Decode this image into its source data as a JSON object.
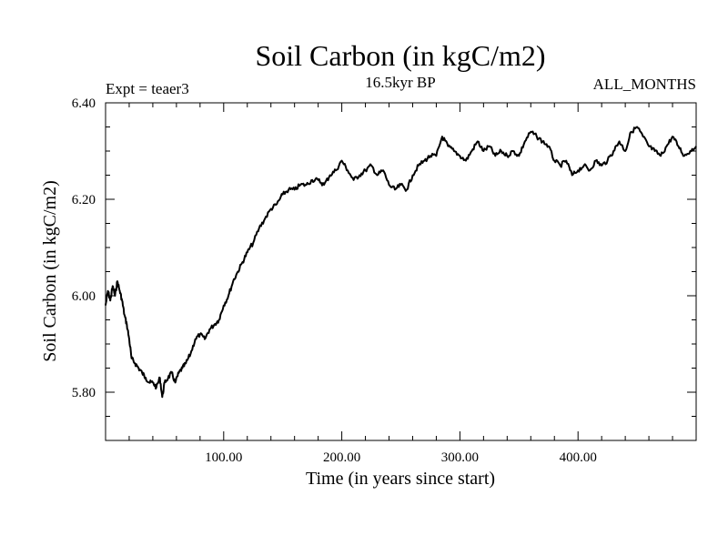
{
  "chart_data": {
    "type": "line",
    "title": "Soil Carbon (in kgC/m2)",
    "subtitle": "16.5kyr BP",
    "left_label": "Expt = teaer3",
    "right_label": "ALL_MONTHS",
    "xlabel": "Time (in years since start)",
    "ylabel": "Soil Carbon (in kgC/m2)",
    "xlim": [
      0,
      500
    ],
    "ylim": [
      5.7,
      6.4
    ],
    "x_ticks": [
      100,
      200,
      300,
      400
    ],
    "x_tick_labels": [
      "100.00",
      "200.00",
      "300.00",
      "400.00"
    ],
    "y_ticks": [
      5.8,
      6.0,
      6.2,
      6.4
    ],
    "y_tick_labels": [
      "5.80",
      "6.00",
      "6.20",
      "6.40"
    ],
    "grid": false,
    "series": [
      {
        "name": "Soil Carbon",
        "color": "#000000",
        "x": [
          0,
          2,
          4,
          6,
          8,
          10,
          12,
          14,
          16,
          18,
          20,
          22,
          25,
          28,
          31,
          34,
          37,
          40,
          43,
          46,
          48,
          50,
          53,
          56,
          59,
          62,
          65,
          68,
          72,
          76,
          80,
          84,
          88,
          92,
          96,
          100,
          104,
          108,
          112,
          116,
          120,
          125,
          130,
          135,
          140,
          145,
          150,
          155,
          160,
          165,
          170,
          175,
          180,
          185,
          190,
          195,
          200,
          205,
          210,
          215,
          220,
          225,
          230,
          235,
          240,
          245,
          250,
          255,
          260,
          265,
          270,
          275,
          280,
          285,
          290,
          295,
          300,
          305,
          310,
          315,
          320,
          325,
          330,
          335,
          340,
          345,
          350,
          355,
          360,
          365,
          370,
          375,
          380,
          385,
          390,
          395,
          400,
          405,
          410,
          415,
          420,
          425,
          430,
          435,
          440,
          445,
          450,
          455,
          460,
          465,
          470,
          475,
          480,
          485,
          490,
          495,
          500
        ],
        "values": [
          5.98,
          6.01,
          5.99,
          6.02,
          6.0,
          6.03,
          6.01,
          5.99,
          5.96,
          5.94,
          5.91,
          5.87,
          5.86,
          5.85,
          5.84,
          5.83,
          5.82,
          5.82,
          5.81,
          5.83,
          5.79,
          5.82,
          5.83,
          5.84,
          5.82,
          5.84,
          5.85,
          5.86,
          5.88,
          5.91,
          5.92,
          5.91,
          5.93,
          5.94,
          5.95,
          5.98,
          6.0,
          6.03,
          6.05,
          6.07,
          6.09,
          6.11,
          6.14,
          6.16,
          6.18,
          6.19,
          6.21,
          6.22,
          6.22,
          6.23,
          6.23,
          6.24,
          6.24,
          6.23,
          6.25,
          6.26,
          6.28,
          6.26,
          6.24,
          6.25,
          6.26,
          6.27,
          6.25,
          6.26,
          6.23,
          6.22,
          6.23,
          6.22,
          6.25,
          6.27,
          6.28,
          6.29,
          6.29,
          6.33,
          6.31,
          6.3,
          6.29,
          6.28,
          6.3,
          6.32,
          6.3,
          6.31,
          6.29,
          6.3,
          6.29,
          6.3,
          6.29,
          6.32,
          6.34,
          6.33,
          6.32,
          6.31,
          6.28,
          6.27,
          6.28,
          6.25,
          6.26,
          6.27,
          6.26,
          6.28,
          6.27,
          6.28,
          6.3,
          6.32,
          6.3,
          6.34,
          6.35,
          6.33,
          6.31,
          6.3,
          6.29,
          6.31,
          6.33,
          6.31,
          6.29,
          6.3,
          6.31
        ]
      }
    ]
  }
}
